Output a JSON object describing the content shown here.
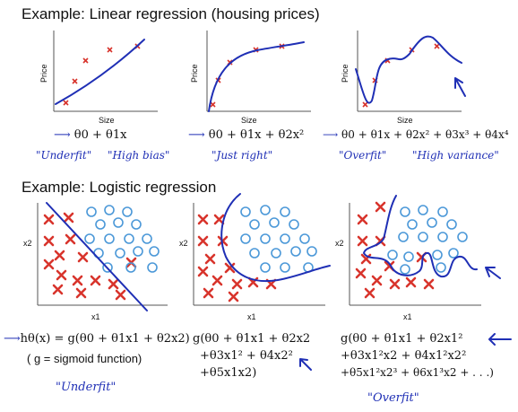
{
  "sections": {
    "linear_title": "Example: Linear regression (housing prices)",
    "logistic_title": "Example: Logistic regression"
  },
  "linear": {
    "ylabel": "Price",
    "xlabel": "Size",
    "formulas": [
      "θ0 + θ1x",
      "θ0 + θ1x + θ2x²",
      "θ0 + θ1x + θ2x² + θ3x³ + θ4x⁴"
    ],
    "notes": [
      [
        "\"Underfit\"",
        "\"High bias\""
      ],
      [
        "\"Just right\""
      ],
      [
        "\"Overfit\"",
        "\"High variance\""
      ]
    ]
  },
  "logistic": {
    "ylabel": "x2",
    "xlabel": "x1",
    "formula_left": "hθ(x) = g(θ0 + θ1x1 + θ2x2)",
    "sigmoid_note": "( g = sigmoid function)",
    "underfit_note": "\"Underfit\"",
    "formula_mid": [
      "g(θ0 + θ1x1 + θ2x2",
      "+θ3x1² + θ4x2²",
      "+θ5x1x2)"
    ],
    "formula_right": [
      "g(θ0 + θ1x1 + θ2x1²",
      "+θ3x1²x2 + θ4x1²x2²",
      "+θ5x1²x2³ + θ6x1³x2 + . . .)"
    ],
    "overfit_note": "\"Overfit\""
  },
  "colors": {
    "cross": "#d8342c",
    "circle": "#4b98d8",
    "ink": "#1f2fb5"
  }
}
